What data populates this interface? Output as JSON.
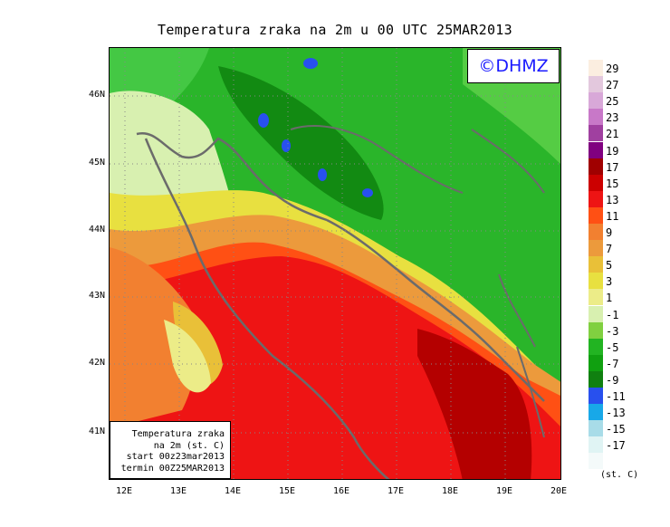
{
  "title": "Temperatura zraka na 2m u 00 UTC 25MAR2013",
  "logo": "©DHMZ",
  "info_box": {
    "line1": "Temperatura zraka",
    "line2": "na 2m (st. C)",
    "line3": "start 00z23mar2013",
    "line4": "termin 00Z25MAR2013"
  },
  "lat_labels": [
    "46N",
    "45N",
    "44N",
    "43N",
    "42N",
    "41N"
  ],
  "lon_labels": [
    "12E",
    "13E",
    "14E",
    "15E",
    "16E",
    "17E",
    "18E",
    "19E",
    "20E"
  ],
  "legend": {
    "units": "(st. C)",
    "labels": [
      "29",
      "27",
      "25",
      "23",
      "21",
      "19",
      "17",
      "15",
      "13",
      "11",
      "9",
      "7",
      "5",
      "3",
      "1",
      "-1",
      "-3",
      "-5",
      "-7",
      "-9",
      "-11",
      "-13",
      "-15",
      "-17"
    ],
    "colors": [
      "#fbeee0",
      "#e3c8dd",
      "#d8a8d8",
      "#c878c8",
      "#a040a0",
      "#800080",
      "#a00000",
      "#cc0000",
      "#ee1414",
      "#ff5014",
      "#f28030",
      "#ec9a3c",
      "#e9c038",
      "#e8e040",
      "#ecec88",
      "#d8f0b0",
      "#80d040",
      "#22b422",
      "#10a010",
      "#108010",
      "#2850ee",
      "#18a8e8",
      "#a8dce8",
      "#e0f4f4"
    ]
  }
}
